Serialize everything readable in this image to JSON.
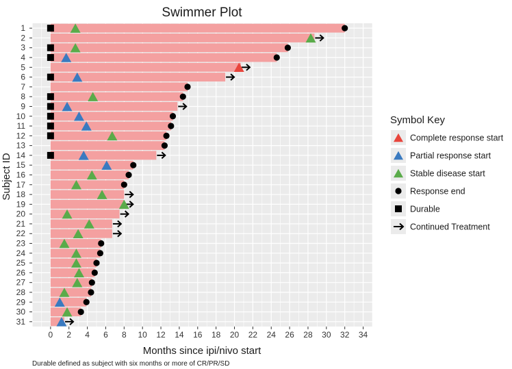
{
  "chart_data": {
    "type": "bar",
    "orientation": "horizontal",
    "title": "Swimmer Plot",
    "xlabel": "Months since ipi/nivo start",
    "ylabel": "Subject ID",
    "xlim": [
      -2,
      35
    ],
    "xticks": [
      0,
      2,
      4,
      6,
      8,
      10,
      12,
      14,
      16,
      18,
      20,
      22,
      24,
      26,
      28,
      30,
      32,
      34
    ],
    "footnote": "Durable defined as subject with six months or more of CR/PR/SD",
    "bar_color": "#f4a0a0",
    "panel_color": "#ebebeb",
    "subjects": [
      {
        "id": "1",
        "duration": 32.0,
        "durable": true,
        "response": "stable",
        "response_start": 2.7,
        "end": "response_end"
      },
      {
        "id": "2",
        "duration": 28.7,
        "durable": false,
        "response": "stable",
        "response_start": 28.3,
        "end": "continued"
      },
      {
        "id": "3",
        "duration": 25.8,
        "durable": true,
        "response": "stable",
        "response_start": 2.7,
        "end": "response_end"
      },
      {
        "id": "4",
        "duration": 24.6,
        "durable": true,
        "response": "partial",
        "response_start": 1.7,
        "end": "response_end"
      },
      {
        "id": "5",
        "duration": 20.7,
        "durable": false,
        "response": "complete",
        "response_start": 20.5,
        "end": "continued"
      },
      {
        "id": "6",
        "duration": 19.0,
        "durable": true,
        "response": "partial",
        "response_start": 2.9,
        "end": "continued"
      },
      {
        "id": "7",
        "duration": 14.9,
        "durable": false,
        "response": null,
        "response_start": null,
        "end": "response_end"
      },
      {
        "id": "8",
        "duration": 14.4,
        "durable": true,
        "response": "stable",
        "response_start": 4.6,
        "end": "response_end"
      },
      {
        "id": "9",
        "duration": 13.8,
        "durable": true,
        "response": "partial",
        "response_start": 1.8,
        "end": "continued"
      },
      {
        "id": "10",
        "duration": 13.3,
        "durable": true,
        "response": "partial",
        "response_start": 3.1,
        "end": "response_end"
      },
      {
        "id": "11",
        "duration": 13.1,
        "durable": true,
        "response": "partial",
        "response_start": 3.9,
        "end": "response_end"
      },
      {
        "id": "12",
        "duration": 12.6,
        "durable": true,
        "response": "stable",
        "response_start": 6.7,
        "end": "response_end"
      },
      {
        "id": "13",
        "duration": 12.4,
        "durable": false,
        "response": null,
        "response_start": null,
        "end": "response_end"
      },
      {
        "id": "14",
        "duration": 11.5,
        "durable": true,
        "response": "partial",
        "response_start": 3.6,
        "end": "continued"
      },
      {
        "id": "15",
        "duration": 9.0,
        "durable": false,
        "response": "partial",
        "response_start": 6.1,
        "end": "response_end"
      },
      {
        "id": "16",
        "duration": 8.5,
        "durable": false,
        "response": "stable",
        "response_start": 4.5,
        "end": "response_end"
      },
      {
        "id": "17",
        "duration": 8.0,
        "durable": false,
        "response": "stable",
        "response_start": 2.8,
        "end": "response_end"
      },
      {
        "id": "18",
        "duration": 8.0,
        "durable": false,
        "response": "stable",
        "response_start": 5.6,
        "end": "continued"
      },
      {
        "id": "19",
        "duration": 8.0,
        "durable": false,
        "response": "stable",
        "response_start": 8.0,
        "end": "continued"
      },
      {
        "id": "20",
        "duration": 7.5,
        "durable": false,
        "response": "stable",
        "response_start": 1.8,
        "end": "continued"
      },
      {
        "id": "21",
        "duration": 6.7,
        "durable": false,
        "response": "stable",
        "response_start": 4.2,
        "end": "continued"
      },
      {
        "id": "22",
        "duration": 6.7,
        "durable": false,
        "response": "stable",
        "response_start": 3.0,
        "end": "continued"
      },
      {
        "id": "23",
        "duration": 5.5,
        "durable": false,
        "response": "stable",
        "response_start": 1.5,
        "end": "response_end"
      },
      {
        "id": "24",
        "duration": 5.4,
        "durable": false,
        "response": "stable",
        "response_start": 2.8,
        "end": "response_end"
      },
      {
        "id": "25",
        "duration": 5.0,
        "durable": false,
        "response": "stable",
        "response_start": 2.8,
        "end": "response_end"
      },
      {
        "id": "26",
        "duration": 4.8,
        "durable": false,
        "response": "stable",
        "response_start": 3.1,
        "end": "response_end"
      },
      {
        "id": "27",
        "duration": 4.5,
        "durable": false,
        "response": "stable",
        "response_start": 2.9,
        "end": "response_end"
      },
      {
        "id": "28",
        "duration": 4.4,
        "durable": false,
        "response": "stable",
        "response_start": 1.5,
        "end": "response_end"
      },
      {
        "id": "29",
        "duration": 3.9,
        "durable": false,
        "response": "partial",
        "response_start": 1.0,
        "end": "response_end"
      },
      {
        "id": "30",
        "duration": 3.3,
        "durable": false,
        "response": "stable",
        "response_start": 1.8,
        "end": "response_end"
      },
      {
        "id": "31",
        "duration": 1.5,
        "durable": false,
        "response": "partial",
        "response_start": 1.2,
        "end": "continued"
      }
    ],
    "legend": {
      "title": "Symbol Key",
      "position": "right",
      "items": [
        {
          "key": "complete",
          "shape": "triangle",
          "color": "#e8453c",
          "label": "Complete response start"
        },
        {
          "key": "partial",
          "shape": "triangle",
          "color": "#3a7ac0",
          "label": "Partial response start"
        },
        {
          "key": "stable",
          "shape": "triangle",
          "color": "#5aab4a",
          "label": "Stable disease start"
        },
        {
          "key": "response_end",
          "shape": "circle",
          "color": "#000000",
          "label": "Response end"
        },
        {
          "key": "durable",
          "shape": "square",
          "color": "#000000",
          "label": "Durable"
        },
        {
          "key": "continued",
          "shape": "arrow",
          "color": "#000000",
          "label": "Continued Treatment"
        }
      ]
    }
  }
}
